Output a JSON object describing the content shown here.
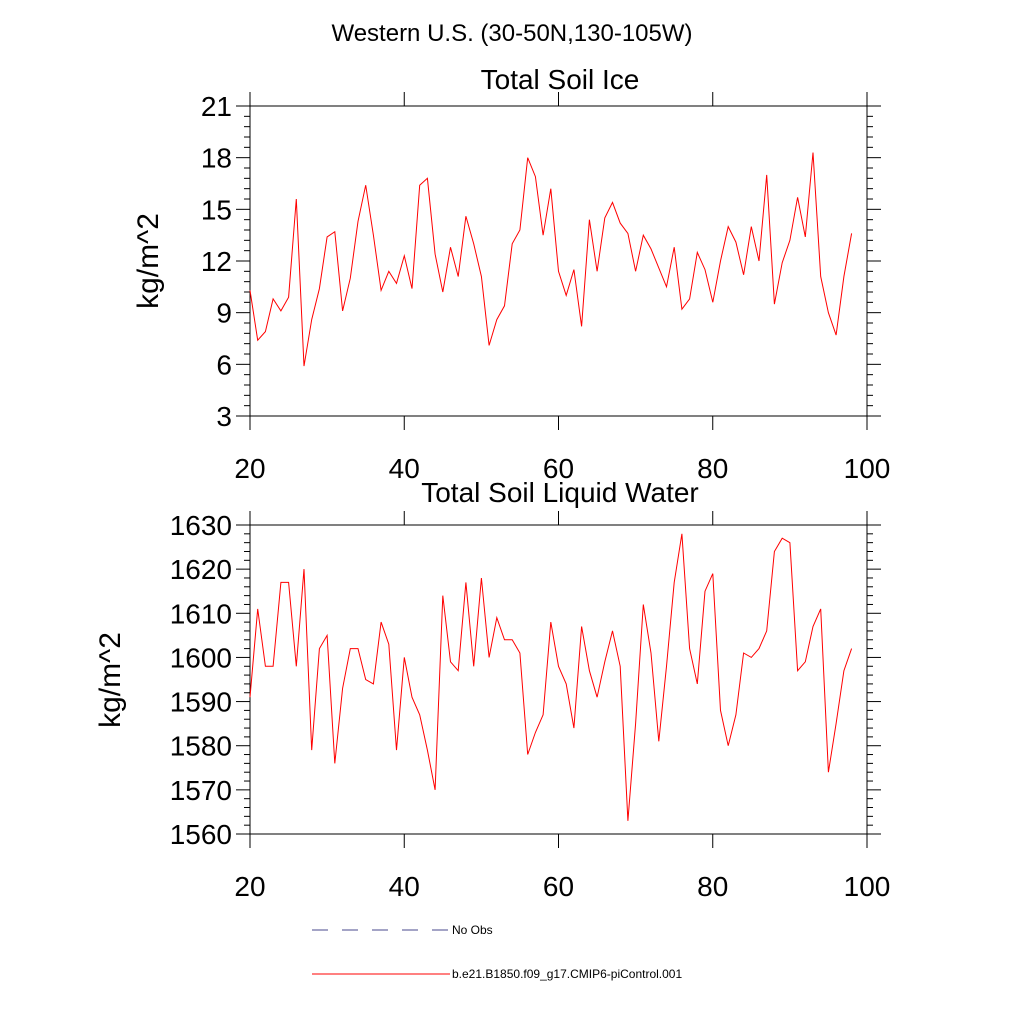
{
  "suptitle": "Western U.S. (30-50N,130-105W)",
  "chart_data": [
    {
      "type": "line",
      "title": "Total Soil Ice",
      "xlabel": "",
      "ylabel": "kg/m^2",
      "xlim": [
        20,
        100
      ],
      "ylim": [
        3,
        21
      ],
      "xticks": [
        20,
        40,
        60,
        80,
        100
      ],
      "yticks": [
        3,
        6,
        9,
        12,
        15,
        18,
        21
      ],
      "series": [
        {
          "name": "b.e21.B1850.f09_g17.CMIP6-piControl.001",
          "color": "#ff0000",
          "x": [
            20,
            21,
            22,
            23,
            24,
            25,
            26,
            27,
            28,
            29,
            30,
            31,
            32,
            33,
            34,
            35,
            36,
            37,
            38,
            39,
            40,
            41,
            42,
            43,
            44,
            45,
            46,
            47,
            48,
            49,
            50,
            51,
            52,
            53,
            54,
            55,
            56,
            57,
            58,
            59,
            60,
            61,
            62,
            63,
            64,
            65,
            66,
            67,
            68,
            69,
            70,
            71,
            72,
            73,
            74,
            75,
            76,
            77,
            78,
            79,
            80,
            81,
            82,
            83,
            84,
            85,
            86,
            87,
            88,
            89,
            90,
            91,
            92,
            93,
            94,
            95,
            96,
            97,
            98
          ],
          "values": [
            10.3,
            7.4,
            7.9,
            9.8,
            9.1,
            9.9,
            15.6,
            5.9,
            8.6,
            10.4,
            13.4,
            13.7,
            9.1,
            11.0,
            14.3,
            16.4,
            13.5,
            10.3,
            11.4,
            10.7,
            12.3,
            10.4,
            16.4,
            16.8,
            12.4,
            10.2,
            12.8,
            11.1,
            14.6,
            13.0,
            11.1,
            7.1,
            8.6,
            9.4,
            13.0,
            13.8,
            18.0,
            16.9,
            13.5,
            16.2,
            11.4,
            10.0,
            11.5,
            8.2,
            14.4,
            11.4,
            14.5,
            15.4,
            14.2,
            13.6,
            11.4,
            13.5,
            12.7,
            11.6,
            10.5,
            12.8,
            9.2,
            9.8,
            12.5,
            11.5,
            9.6,
            12.0,
            14.0,
            13.1,
            11.2,
            14.0,
            12.0,
            17.0,
            9.5,
            11.9,
            13.2,
            15.7,
            13.4,
            18.3,
            11.1,
            9.0,
            7.7,
            11.1,
            13.6
          ]
        }
      ]
    },
    {
      "type": "line",
      "title": "Total Soil Liquid Water",
      "xlabel": "",
      "ylabel": "kg/m^2",
      "xlim": [
        20,
        100
      ],
      "ylim": [
        1560,
        1630
      ],
      "xticks": [
        20,
        40,
        60,
        80,
        100
      ],
      "yticks": [
        1560,
        1570,
        1580,
        1590,
        1600,
        1610,
        1620,
        1630
      ],
      "series": [
        {
          "name": "b.e21.B1850.f09_g17.CMIP6-piControl.001",
          "color": "#ff0000",
          "x": [
            20,
            21,
            22,
            23,
            24,
            25,
            26,
            27,
            28,
            29,
            30,
            31,
            32,
            33,
            34,
            35,
            36,
            37,
            38,
            39,
            40,
            41,
            42,
            43,
            44,
            45,
            46,
            47,
            48,
            49,
            50,
            51,
            52,
            53,
            54,
            55,
            56,
            57,
            58,
            59,
            60,
            61,
            62,
            63,
            64,
            65,
            66,
            67,
            68,
            69,
            70,
            71,
            72,
            73,
            74,
            75,
            76,
            77,
            78,
            79,
            80,
            81,
            82,
            83,
            84,
            85,
            86,
            87,
            88,
            89,
            90,
            91,
            92,
            93,
            94,
            95,
            96,
            97,
            98
          ],
          "values": [
            1591,
            1611,
            1598,
            1598,
            1617,
            1617,
            1598,
            1620,
            1579,
            1602,
            1605,
            1576,
            1593,
            1602,
            1602,
            1595,
            1594,
            1608,
            1603,
            1579,
            1600,
            1591,
            1587,
            1579,
            1570,
            1614,
            1599,
            1597,
            1617,
            1598,
            1618,
            1600,
            1609,
            1604,
            1604,
            1601,
            1578,
            1583,
            1587,
            1608,
            1598,
            1594,
            1584,
            1607,
            1597,
            1591,
            1599,
            1606,
            1598,
            1563,
            1585,
            1612,
            1601,
            1581,
            1598,
            1617,
            1628,
            1602,
            1594,
            1615,
            1619,
            1588,
            1580,
            1587,
            1601,
            1600,
            1602,
            1606,
            1624,
            1627,
            1626,
            1597,
            1599,
            1607,
            1611,
            1574,
            1585,
            1597,
            1602
          ]
        }
      ]
    }
  ],
  "legend": {
    "entries": [
      {
        "label": "No Obs",
        "color": "#4a4a8c",
        "style": "dashed"
      },
      {
        "label": "b.e21.B1850.f09_g17.CMIP6-piControl.001",
        "color": "#ff0000",
        "style": "solid"
      }
    ]
  }
}
